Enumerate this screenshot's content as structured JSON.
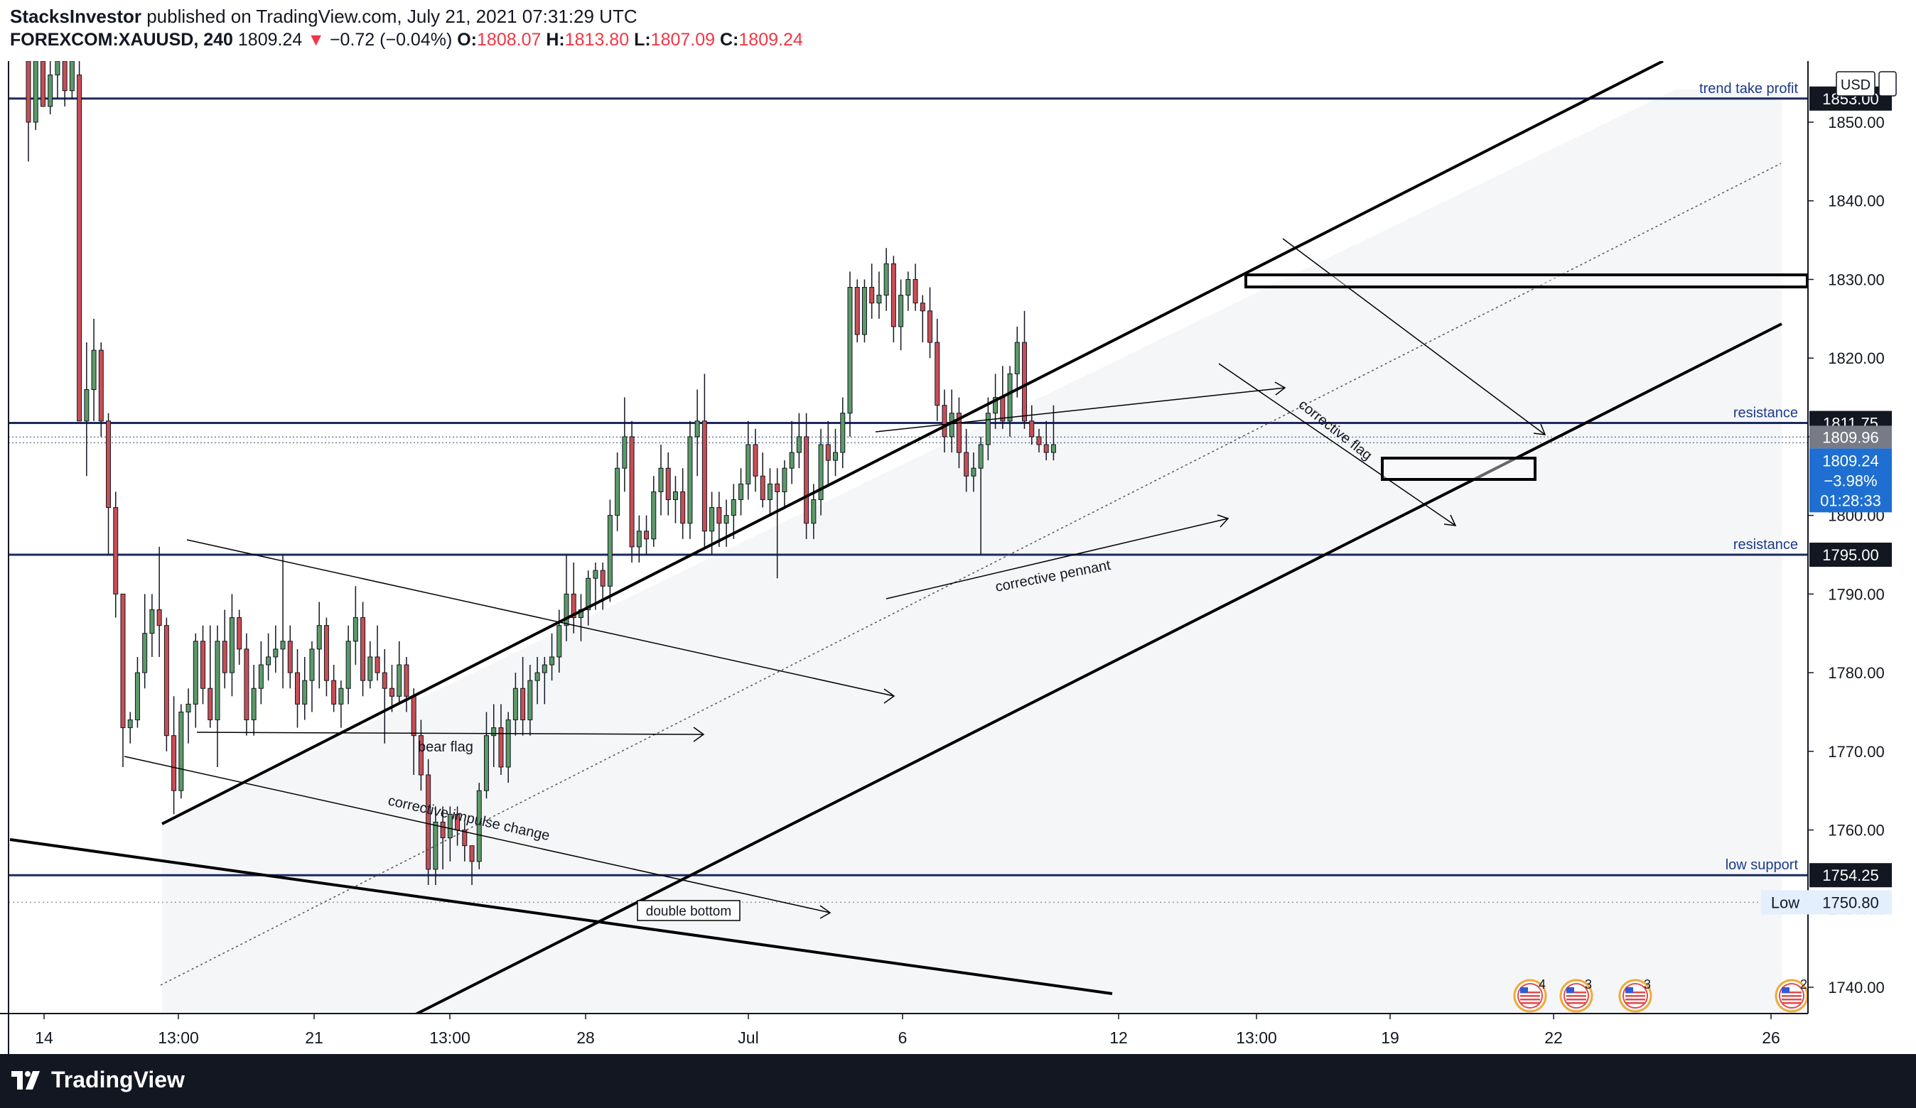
{
  "header": {
    "author": "StacksInvestor",
    "published_text": "published on TradingView.com, July 21, 2021 07:31:29 UTC",
    "symbol": "FOREXCOM:XAUUSD, 240",
    "last": "1809.24",
    "change": "−0.72 (−0.04%)",
    "o_label": "O:",
    "o": "1808.07",
    "h_label": "H:",
    "h": "1813.80",
    "l_label": "L:",
    "l": "1807.09",
    "c_label": "C:",
    "c": "1809.24"
  },
  "footer": {
    "brand": "TradingView"
  },
  "colors": {
    "up": "#5b9a68",
    "down": "#c94e55",
    "level_line": "#1b2a5e",
    "label_bg": "#131722",
    "price_bg": "#1e6fd1",
    "prev_bg": "#787b86",
    "channel_fill": "#f5f6f8",
    "low_label_bg": "#e3effd"
  },
  "chart_data": {
    "type": "candlestick",
    "currency": "USD",
    "ylim": [
      1736,
      1858
    ],
    "y_ticks": [
      "1740.00",
      "1750.00",
      "1760.00",
      "1770.00",
      "1780.00",
      "1790.00",
      "1800.00",
      "1810.00",
      "1820.00",
      "1830.00",
      "1840.00",
      "1850.00"
    ],
    "x_ticks": [
      "14",
      "13:00",
      "21",
      "13:00",
      "28",
      "Jul",
      "6",
      "12",
      "13:00",
      "19",
      "22",
      "26"
    ],
    "levels": [
      {
        "label": "trend take profit",
        "value": "1853.00",
        "y": 1853.0
      },
      {
        "label": "resistance",
        "value": "1811.75",
        "y": 1811.75
      },
      {
        "label": "resistance",
        "value": "1795.00",
        "y": 1795.0
      },
      {
        "label": "low support",
        "value": "1754.25",
        "y": 1754.25
      }
    ],
    "low_marker": {
      "label": "Low",
      "value": "1750.80",
      "y": 1750.8
    },
    "prev_close_marker": {
      "value": "1809.96",
      "y": 1809.96
    },
    "current_price": {
      "value": "1809.24",
      "change": "−3.98%",
      "countdown": "01:28:33",
      "y": 1809.24
    },
    "annotations": [
      "bear flag",
      "corrective impulse change",
      "double bottom",
      "corrective pennant",
      "corrective flag"
    ],
    "events": [
      "4",
      "3",
      "3",
      "2"
    ],
    "candles": [
      [
        1858,
        1858,
        1845,
        1850
      ],
      [
        1850,
        1858,
        1849,
        1858
      ],
      [
        1858,
        1858,
        1852,
        1852
      ],
      [
        1852,
        1858,
        1851,
        1856
      ],
      [
        1856,
        1858,
        1853,
        1858
      ],
      [
        1858,
        1858,
        1852,
        1854
      ],
      [
        1854,
        1858,
        1853,
        1858
      ],
      [
        1856,
        1858,
        1812,
        1812
      ],
      [
        1812,
        1822,
        1805,
        1816
      ],
      [
        1816,
        1825,
        1812,
        1821
      ],
      [
        1821,
        1822,
        1810,
        1812
      ],
      [
        1812,
        1813,
        1795,
        1801
      ],
      [
        1801,
        1803,
        1787,
        1790
      ],
      [
        1790,
        1790,
        1768,
        1773
      ],
      [
        1773,
        1775,
        1771,
        1774
      ],
      [
        1774,
        1782,
        1773,
        1780
      ],
      [
        1780,
        1790,
        1778,
        1785
      ],
      [
        1785,
        1790,
        1782,
        1788
      ],
      [
        1788,
        1796,
        1782,
        1786
      ],
      [
        1786,
        1787,
        1770,
        1772
      ],
      [
        1772,
        1777,
        1762,
        1765
      ],
      [
        1765,
        1776,
        1764,
        1775
      ],
      [
        1775,
        1778,
        1771,
        1776
      ],
      [
        1776,
        1785,
        1773,
        1784
      ],
      [
        1784,
        1786,
        1776,
        1778
      ],
      [
        1778,
        1786,
        1773,
        1774
      ],
      [
        1774,
        1786,
        1768,
        1784
      ],
      [
        1784,
        1788,
        1778,
        1780
      ],
      [
        1780,
        1790,
        1777,
        1787
      ],
      [
        1787,
        1788,
        1781,
        1783
      ],
      [
        1783,
        1785,
        1772,
        1774
      ],
      [
        1774,
        1781,
        1772,
        1778
      ],
      [
        1778,
        1784,
        1776,
        1781
      ],
      [
        1781,
        1785,
        1779,
        1782
      ],
      [
        1782,
        1786,
        1780,
        1783
      ],
      [
        1783,
        1795,
        1778,
        1784
      ],
      [
        1784,
        1786,
        1778,
        1780
      ],
      [
        1780,
        1783,
        1773,
        1776
      ],
      [
        1776,
        1782,
        1774,
        1779
      ],
      [
        1779,
        1784,
        1775,
        1783
      ],
      [
        1783,
        1789,
        1778,
        1786
      ],
      [
        1786,
        1787,
        1777,
        1779
      ],
      [
        1779,
        1781,
        1775,
        1776
      ],
      [
        1776,
        1779,
        1773,
        1778
      ],
      [
        1778,
        1786,
        1776,
        1784
      ],
      [
        1784,
        1791,
        1781,
        1787
      ],
      [
        1787,
        1789,
        1777,
        1779
      ],
      [
        1779,
        1784,
        1778,
        1782
      ],
      [
        1782,
        1786,
        1779,
        1780
      ],
      [
        1780,
        1783,
        1771,
        1778
      ],
      [
        1778,
        1781,
        1775,
        1777
      ],
      [
        1777,
        1784,
        1776,
        1781
      ],
      [
        1781,
        1782,
        1775,
        1777
      ],
      [
        1777,
        1778,
        1767,
        1772
      ],
      [
        1772,
        1774,
        1765,
        1767
      ],
      [
        1767,
        1769,
        1753,
        1755
      ],
      [
        1755,
        1763,
        1753,
        1761
      ],
      [
        1761,
        1763,
        1755,
        1759
      ],
      [
        1759,
        1763,
        1756,
        1762
      ],
      [
        1762,
        1763,
        1758,
        1760
      ],
      [
        1760,
        1761,
        1756,
        1758
      ],
      [
        1758,
        1758,
        1753,
        1756
      ],
      [
        1756,
        1766,
        1755,
        1765
      ],
      [
        1765,
        1775,
        1764,
        1772
      ],
      [
        1772,
        1776,
        1768,
        1773
      ],
      [
        1773,
        1776,
        1767,
        1768
      ],
      [
        1768,
        1775,
        1766,
        1774
      ],
      [
        1774,
        1780,
        1772,
        1778
      ],
      [
        1778,
        1782,
        1772,
        1774
      ],
      [
        1774,
        1781,
        1772,
        1779
      ],
      [
        1779,
        1782,
        1776,
        1780
      ],
      [
        1780,
        1782,
        1776,
        1781
      ],
      [
        1781,
        1785,
        1779,
        1782
      ],
      [
        1782,
        1788,
        1780,
        1786
      ],
      [
        1786,
        1795,
        1784,
        1790
      ],
      [
        1790,
        1794,
        1785,
        1787
      ],
      [
        1787,
        1790,
        1784,
        1788
      ],
      [
        1788,
        1793,
        1786,
        1792
      ],
      [
        1792,
        1794,
        1788,
        1793
      ],
      [
        1793,
        1794,
        1788,
        1791
      ],
      [
        1791,
        1802,
        1789,
        1800
      ],
      [
        1800,
        1808,
        1798,
        1806
      ],
      [
        1806,
        1815,
        1803,
        1810
      ],
      [
        1810,
        1812,
        1794,
        1796
      ],
      [
        1796,
        1800,
        1794,
        1798
      ],
      [
        1798,
        1800,
        1795,
        1797
      ],
      [
        1797,
        1805,
        1796,
        1803
      ],
      [
        1803,
        1809,
        1800,
        1806
      ],
      [
        1806,
        1808,
        1800,
        1802
      ],
      [
        1802,
        1805,
        1799,
        1803
      ],
      [
        1803,
        1806,
        1797,
        1799
      ],
      [
        1799,
        1812,
        1797,
        1810
      ],
      [
        1810,
        1816,
        1805,
        1812
      ],
      [
        1812,
        1818,
        1796,
        1798
      ],
      [
        1798,
        1803,
        1795,
        1801
      ],
      [
        1801,
        1803,
        1796,
        1799
      ],
      [
        1799,
        1802,
        1796,
        1800
      ],
      [
        1800,
        1804,
        1797,
        1802
      ],
      [
        1802,
        1806,
        1800,
        1804
      ],
      [
        1804,
        1812,
        1802,
        1809
      ],
      [
        1809,
        1811,
        1803,
        1805
      ],
      [
        1805,
        1808,
        1801,
        1802
      ],
      [
        1802,
        1806,
        1800,
        1804
      ],
      [
        1804,
        1806,
        1792,
        1803
      ],
      [
        1803,
        1807,
        1801,
        1806
      ],
      [
        1806,
        1812,
        1804,
        1808
      ],
      [
        1808,
        1813,
        1806,
        1810
      ],
      [
        1810,
        1813,
        1797,
        1799
      ],
      [
        1799,
        1804,
        1797,
        1802
      ],
      [
        1802,
        1811,
        1800,
        1809
      ],
      [
        1809,
        1812,
        1804,
        1807
      ],
      [
        1807,
        1811,
        1805,
        1808
      ],
      [
        1808,
        1815,
        1806,
        1813
      ],
      [
        1813,
        1831,
        1810,
        1829
      ],
      [
        1829,
        1830,
        1822,
        1823
      ],
      [
        1823,
        1830,
        1822,
        1829
      ],
      [
        1829,
        1832,
        1825,
        1827
      ],
      [
        1827,
        1831,
        1825,
        1828
      ],
      [
        1828,
        1834,
        1826,
        1832
      ],
      [
        1832,
        1833,
        1822,
        1824
      ],
      [
        1824,
        1830,
        1821,
        1828
      ],
      [
        1828,
        1831,
        1826,
        1830
      ],
      [
        1830,
        1832,
        1826,
        1827
      ],
      [
        1827,
        1828,
        1822,
        1826
      ],
      [
        1826,
        1829,
        1820,
        1822
      ],
      [
        1822,
        1825,
        1812,
        1814
      ],
      [
        1814,
        1816,
        1808,
        1810
      ],
      [
        1810,
        1816,
        1808,
        1813
      ],
      [
        1813,
        1815,
        1806,
        1808
      ],
      [
        1808,
        1811,
        1803,
        1805
      ],
      [
        1805,
        1808,
        1803,
        1806
      ],
      [
        1806,
        1810,
        1795,
        1809
      ],
      [
        1809,
        1815,
        1807,
        1813
      ],
      [
        1813,
        1818,
        1811,
        1815
      ],
      [
        1815,
        1819,
        1811,
        1812
      ],
      [
        1812,
        1819,
        1810,
        1818
      ],
      [
        1818,
        1824,
        1815,
        1822
      ],
      [
        1822,
        1826,
        1811,
        1812
      ],
      [
        1812,
        1814,
        1809,
        1810
      ],
      [
        1810,
        1811,
        1808,
        1809
      ],
      [
        1809,
        1812,
        1807,
        1808
      ],
      [
        1808,
        1814,
        1807,
        1809
      ]
    ]
  }
}
